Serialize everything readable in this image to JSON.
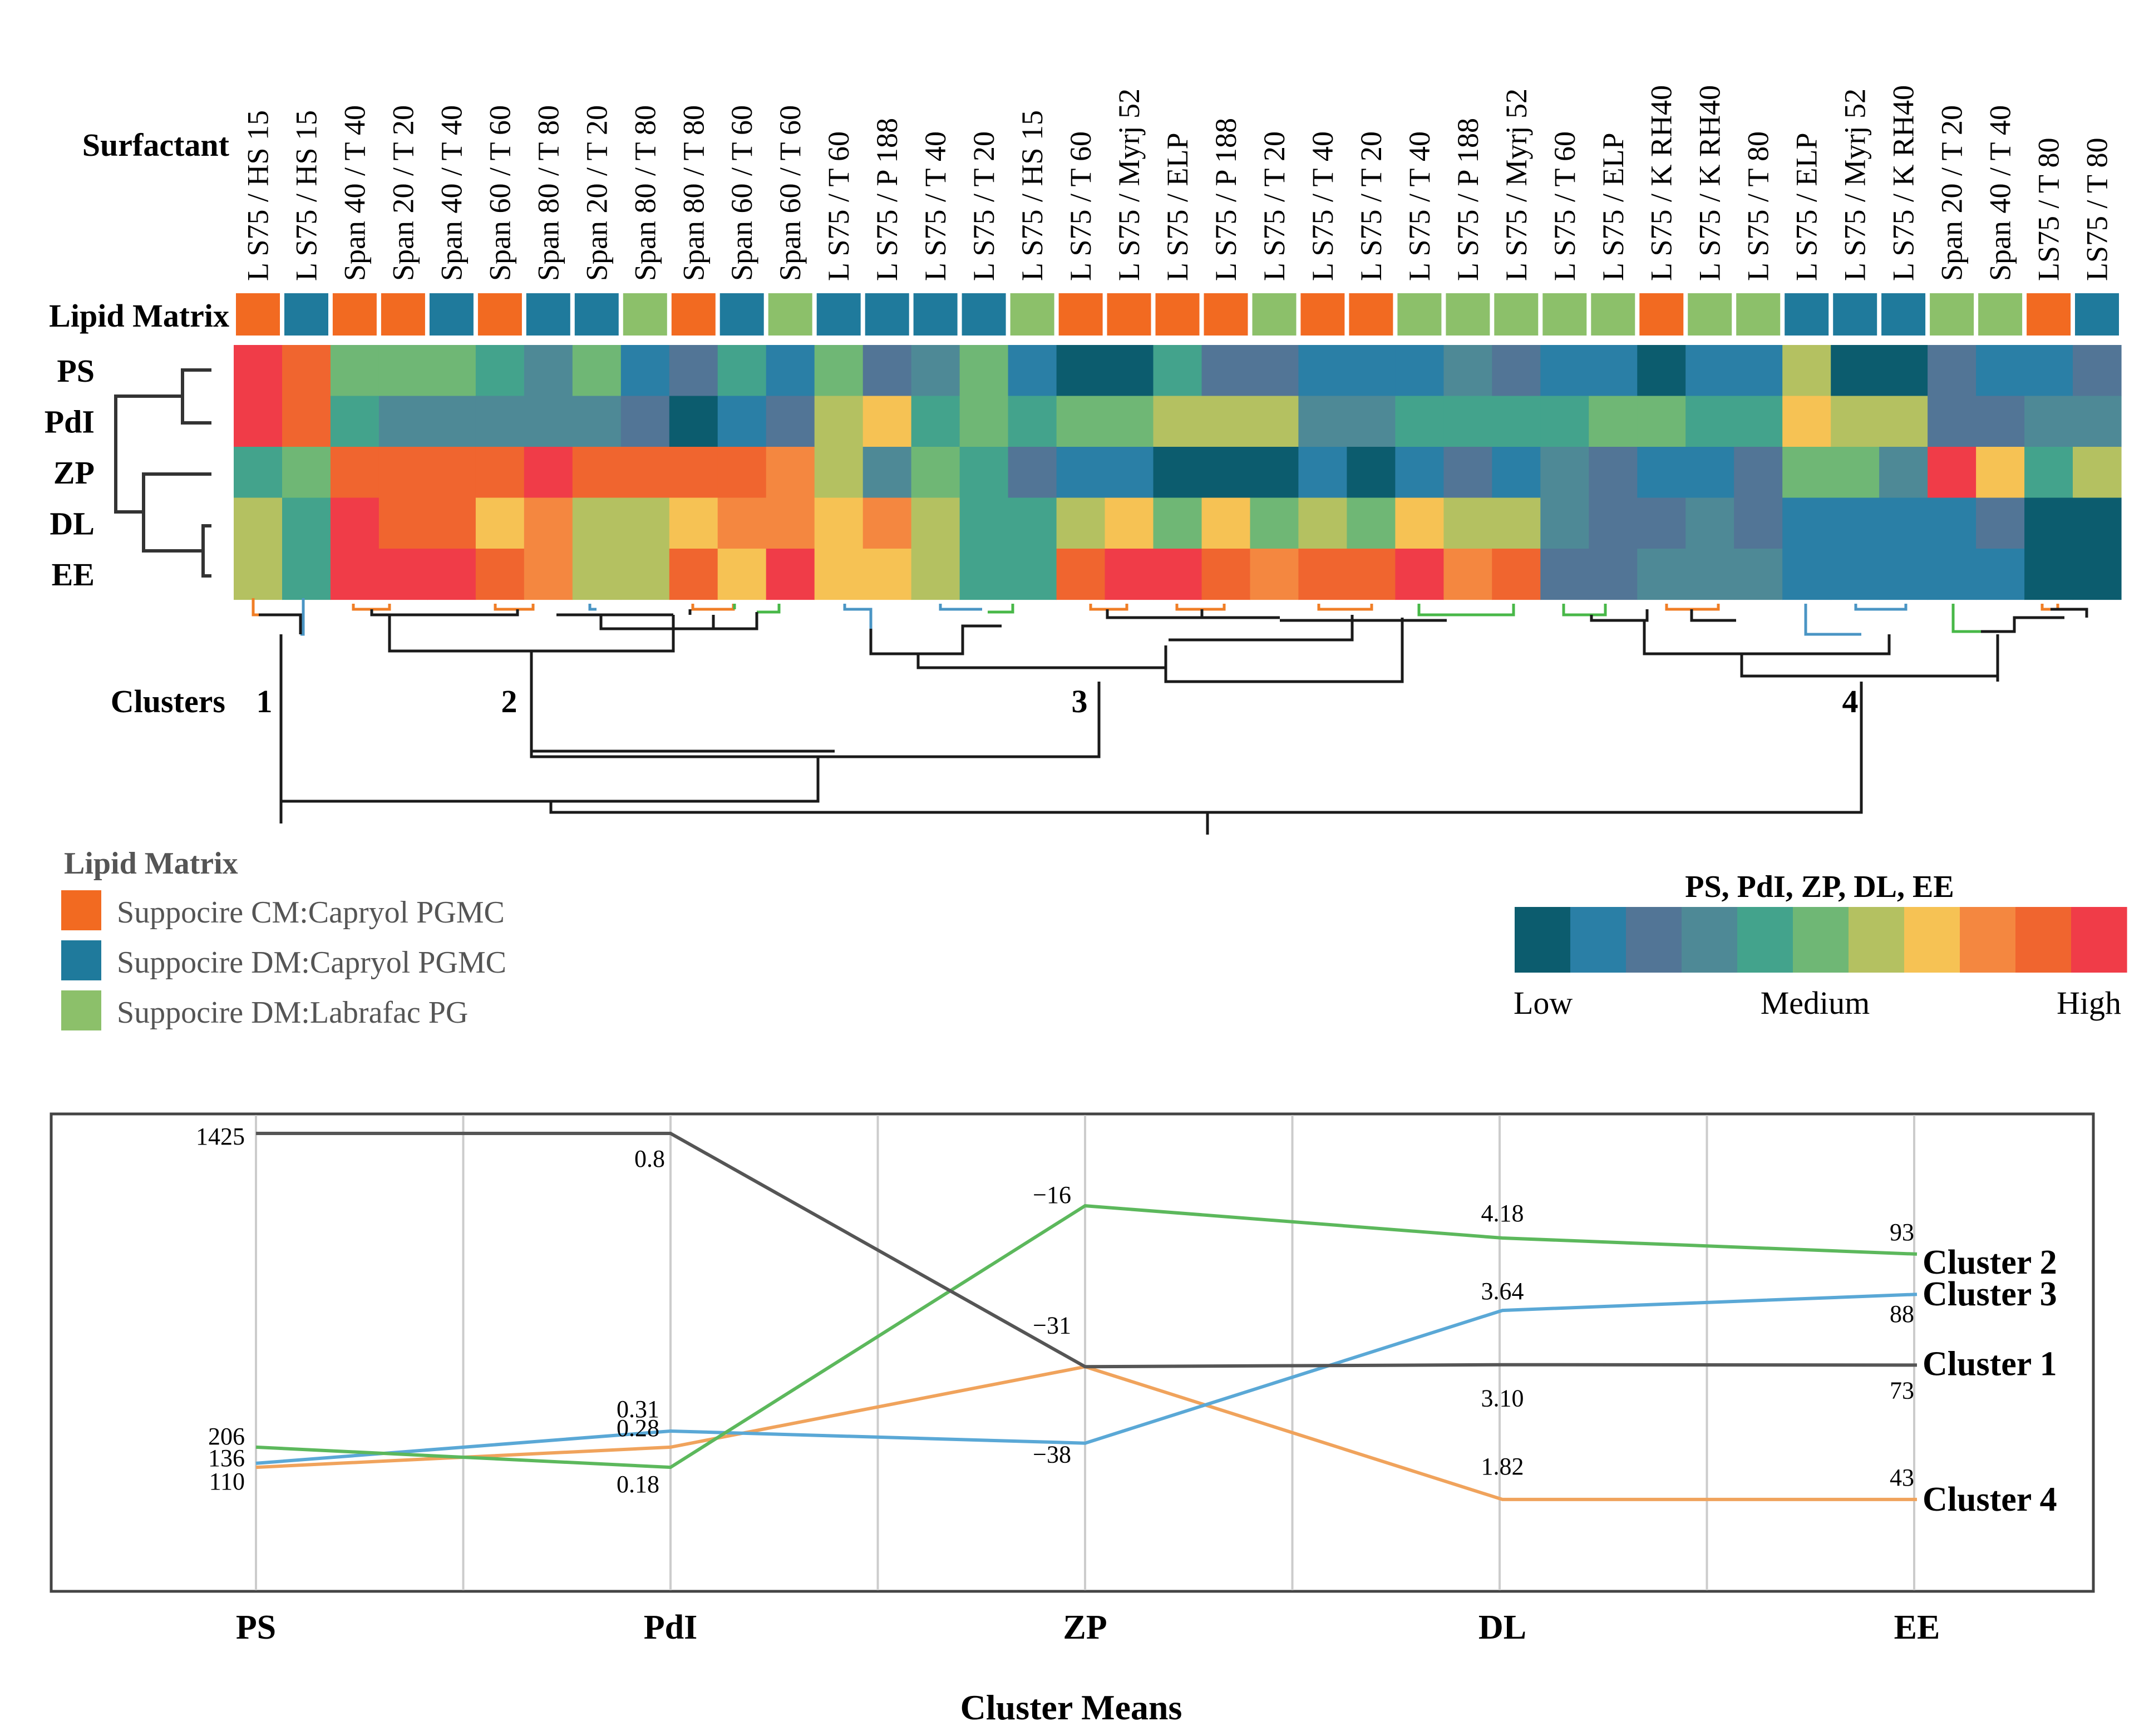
{
  "colors": {
    "scale": [
      "#0c5c6e",
      "#2a7fa6",
      "#527596",
      "#4e8996",
      "#43a38c",
      "#6fb775",
      "#b4c161",
      "#f6c254",
      "#f48740",
      "#f0652f",
      "#f03c48"
    ],
    "matrix": {
      "CM_PGMC": "#f26a21",
      "DM_PGMC": "#1f7a9c",
      "DM_PG": "#8cc06a"
    },
    "cluster_lines": {
      "1": "#555555",
      "2": "#5cb85c",
      "3": "#5aa8d6",
      "4": "#f0a35c"
    },
    "dendro_leaf": {
      "orange": "#f07e26",
      "blue": "#4a95c4",
      "green": "#48b848",
      "black": "#1a1a1a"
    }
  },
  "heatmap": {
    "row_title_surfactant": "Surfactant",
    "row_title_matrix": "Lipid Matrix",
    "variables": [
      "PS",
      "PdI",
      "ZP",
      "DL",
      "EE"
    ],
    "surfactants": [
      "L S75 / HS 15",
      "L S75 / HS 15",
      "Span 40 / T 40",
      "Span 20 / T 20",
      "Span 40 / T 40",
      "Span 60 / T 60",
      "Span 80 / T 80",
      "Span 20 / T 20",
      "Span 80 / T 80",
      "Span 80 / T 80",
      "Span 60 / T 60",
      "Span 60 / T 60",
      "L S75 / T 60",
      "L S75 / P 188",
      "L S75 / T 40",
      "L S75 / T 20",
      "L S75 / HS 15",
      "L S75 / T 60",
      "L S75 / Myrj 52",
      "L S75 / ELP",
      "L S75 / P 188",
      "L S75 / T 20",
      "L S75 / T 40",
      "L S75 / T 20",
      "L S75 / T 40",
      "L S75 / P 188",
      "L S75 / Myrj 52",
      "L S75 / T 60",
      "L S75 / ELP",
      "L S75 / K RH40",
      "L S75 / K RH40",
      "L S75 / T 80",
      "L S75 / ELP",
      "L S75 / Myrj 52",
      "L S75 / K RH40",
      "Span 20 / T 20",
      "Span 40 / T 40",
      "LS75 / T 80",
      "LS75 / T 80"
    ],
    "matrix": [
      "CM_PGMC",
      "DM_PGMC",
      "CM_PGMC",
      "CM_PGMC",
      "DM_PGMC",
      "CM_PGMC",
      "DM_PGMC",
      "DM_PGMC",
      "DM_PG",
      "CM_PGMC",
      "DM_PGMC",
      "DM_PG",
      "DM_PGMC",
      "DM_PGMC",
      "DM_PGMC",
      "DM_PGMC",
      "DM_PG",
      "CM_PGMC",
      "CM_PGMC",
      "CM_PGMC",
      "CM_PGMC",
      "DM_PG",
      "CM_PGMC",
      "CM_PGMC",
      "DM_PG",
      "DM_PG",
      "DM_PG",
      "DM_PG",
      "DM_PG",
      "CM_PGMC",
      "DM_PG",
      "DM_PG",
      "DM_PGMC",
      "DM_PGMC",
      "DM_PGMC",
      "DM_PG",
      "DM_PG",
      "CM_PGMC",
      "DM_PGMC"
    ],
    "values": [
      [
        10,
        9,
        5,
        5,
        5,
        4,
        3,
        5,
        1,
        2,
        4,
        1,
        5,
        2,
        3,
        5,
        1,
        0,
        0,
        4,
        2,
        2,
        1,
        1,
        1,
        3,
        2,
        1,
        1,
        0,
        1,
        1,
        6,
        0,
        0,
        2,
        1,
        1,
        2
      ],
      [
        10,
        9,
        4,
        3,
        3,
        3,
        3,
        3,
        2,
        0,
        1,
        2,
        6,
        7,
        4,
        5,
        4,
        5,
        5,
        6,
        6,
        6,
        3,
        3,
        4,
        4,
        4,
        4,
        5,
        5,
        4,
        4,
        7,
        6,
        6,
        2,
        2,
        3,
        3
      ],
      [
        4,
        5,
        9,
        9,
        9,
        9,
        10,
        9,
        9,
        9,
        9,
        8,
        6,
        3,
        5,
        4,
        2,
        1,
        1,
        0,
        0,
        0,
        1,
        0,
        1,
        2,
        1,
        3,
        2,
        1,
        1,
        2,
        5,
        5,
        3,
        10,
        7,
        4,
        6
      ],
      [
        6,
        4,
        10,
        9,
        9,
        7,
        8,
        6,
        6,
        7,
        8,
        8,
        7,
        8,
        6,
        4,
        4,
        6,
        7,
        5,
        7,
        5,
        6,
        5,
        7,
        6,
        6,
        3,
        2,
        2,
        3,
        2,
        1,
        1,
        1,
        1,
        2,
        0,
        0
      ],
      [
        6,
        4,
        10,
        10,
        10,
        9,
        8,
        6,
        6,
        9,
        7,
        10,
        7,
        7,
        6,
        4,
        4,
        9,
        10,
        10,
        9,
        8,
        9,
        9,
        10,
        8,
        9,
        2,
        2,
        3,
        3,
        3,
        1,
        1,
        1,
        1,
        1,
        0,
        0
      ]
    ],
    "clusters_label": "Clusters",
    "cluster_numbers": [
      "1",
      "2",
      "3",
      "4"
    ]
  },
  "legend": {
    "title": "Lipid Matrix",
    "items": [
      {
        "key": "CM_PGMC",
        "label": "Suppocire CM:Capryol PGMC"
      },
      {
        "key": "DM_PGMC",
        "label": "Suppocire DM:Capryol PGMC"
      },
      {
        "key": "DM_PG",
        "label": "Suppocire DM:Labrafac PG"
      }
    ]
  },
  "colorbar": {
    "title": "PS, PdI, ZP, DL, EE",
    "low": "Low",
    "medium": "Medium",
    "high": "High"
  },
  "chart_data": {
    "type": "line",
    "title": "",
    "xlabel": "Cluster Means",
    "ylabel": "",
    "grid": true,
    "categories": [
      "PS",
      "PdI",
      "ZP",
      "DL",
      "EE"
    ],
    "note": "Parallel-coordinates plot; each axis has its own scale, values given as the labelled means with relative heights estimated as 0-1 level on each axis.",
    "series": [
      {
        "name": "Cluster 1",
        "key": "1",
        "values": [
          1425,
          0.8,
          -31,
          3.1,
          73
        ],
        "levels": [
          1.0,
          1.0,
          0.42,
          0.425,
          0.424
        ]
      },
      {
        "name": "Cluster 2",
        "key": "2",
        "values": [
          206,
          0.18,
          -16,
          4.18,
          93
        ],
        "levels": [
          0.22,
          0.17,
          0.82,
          0.74,
          0.7
        ]
      },
      {
        "name": "Cluster 3",
        "key": "3",
        "values": [
          136,
          0.31,
          -38,
          3.64,
          88
        ],
        "levels": [
          0.18,
          0.26,
          0.23,
          0.56,
          0.6
        ]
      },
      {
        "name": "Cluster 4",
        "key": "4",
        "values": [
          110,
          0.28,
          -31,
          1.82,
          43
        ],
        "levels": [
          0.17,
          0.22,
          0.42,
          0.09,
          0.09
        ]
      }
    ],
    "point_labels": [
      [
        "1425",
        "0.8",
        "−31",
        "3.10",
        "73"
      ],
      [
        "206",
        "0.18",
        "−16",
        "4.18",
        "93"
      ],
      [
        "136",
        "0.31",
        "−38",
        "3.64",
        "88"
      ],
      [
        "110",
        "0.28",
        "",
        "1.82",
        "43"
      ]
    ]
  }
}
